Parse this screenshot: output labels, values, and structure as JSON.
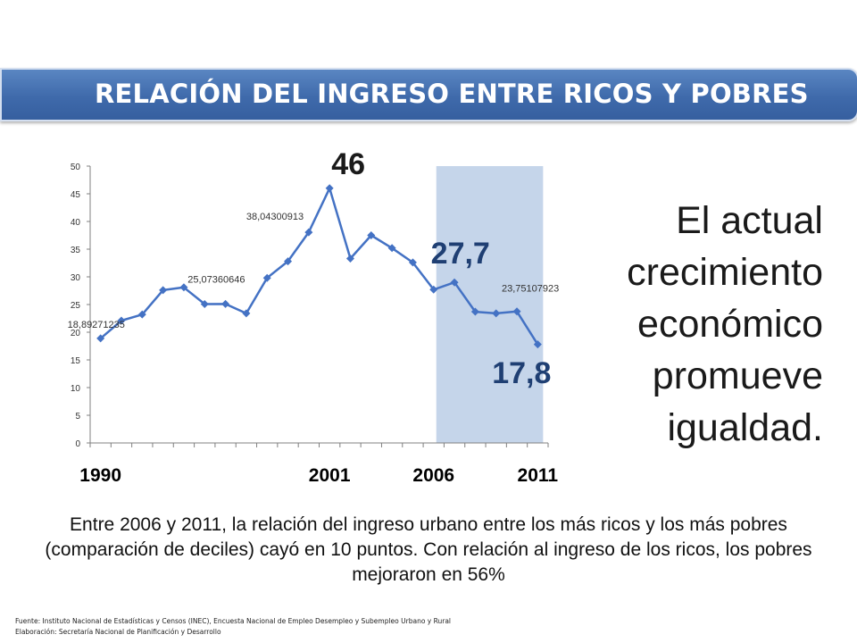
{
  "title": "RELACIÓN DEL INGRESO ENTRE RICOS Y POBRES",
  "chart_data": {
    "type": "line",
    "x": [
      1990,
      1991,
      1992,
      1993,
      1994,
      1995,
      1996,
      1997,
      1998,
      1999,
      2000,
      2001,
      2002,
      2003,
      2004,
      2005,
      2006,
      2007,
      2008,
      2009,
      2010,
      2011
    ],
    "series": [
      {
        "values": [
          18.89271235,
          22.1,
          23.2,
          27.6,
          28.1,
          25.07360646,
          25.1,
          23.4,
          29.8,
          32.8,
          38.04300913,
          46,
          33.3,
          37.5,
          35.2,
          32.6,
          27.7,
          29.0,
          23.7,
          23.4,
          23.75107923,
          17.8
        ]
      }
    ],
    "ylim": [
      0,
      50
    ],
    "yticks": [
      0,
      5,
      10,
      15,
      20,
      25,
      30,
      35,
      40,
      45,
      50
    ],
    "xticklabels": [
      "1990",
      "2001",
      "2006",
      "2011"
    ],
    "data_labels": [
      {
        "x": 1990,
        "text": "18,89271235"
      },
      {
        "x": 1995,
        "text": "25,07360646"
      },
      {
        "x": 2000,
        "text": "38,04300913"
      },
      {
        "x": 2010,
        "text": "23,75107923"
      }
    ],
    "callouts": {
      "peak": "46",
      "y2006": "27,7",
      "y2011": "17,8"
    },
    "highlight_range": [
      2006,
      2011
    ],
    "grid": false,
    "colors": {
      "line": "#4472c4",
      "highlight": "#c5d5ea"
    }
  },
  "side_text": [
    "El actual",
    "crecimiento",
    "económico",
    "promueve",
    "igualdad."
  ],
  "paragraph": "Entre 2006 y 2011, la relación del ingreso urbano entre los más ricos y los más pobres (comparación de deciles) cayó en 10 puntos. Con relación al ingreso de los ricos, los pobres mejoraron en 56%",
  "footnotes": {
    "source": "Fuente:  Instituto Nacional de Estadísticas y Censos (INEC), Encuesta Nacional de Empleo Desempleo y Subempleo Urbano y Rural",
    "elaboration": "Elaboración: Secretaría Nacional de Planificación y Desarrollo"
  }
}
